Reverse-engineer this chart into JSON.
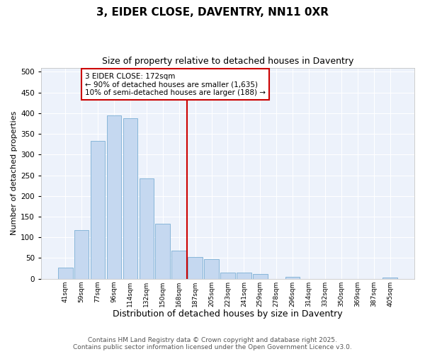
{
  "title": "3, EIDER CLOSE, DAVENTRY, NN11 0XR",
  "subtitle": "Size of property relative to detached houses in Daventry",
  "xlabel": "Distribution of detached houses by size in Daventry",
  "ylabel": "Number of detached properties",
  "bar_labels": [
    "41sqm",
    "59sqm",
    "77sqm",
    "96sqm",
    "114sqm",
    "132sqm",
    "150sqm",
    "168sqm",
    "187sqm",
    "205sqm",
    "223sqm",
    "241sqm",
    "259sqm",
    "278sqm",
    "296sqm",
    "314sqm",
    "332sqm",
    "350sqm",
    "369sqm",
    "387sqm",
    "405sqm"
  ],
  "bar_values": [
    27,
    117,
    333,
    395,
    387,
    243,
    133,
    68,
    52,
    48,
    15,
    15,
    11,
    0,
    5,
    0,
    0,
    0,
    0,
    0,
    3
  ],
  "bar_color": "#c5d8f0",
  "bar_edge_color": "#7bafd4",
  "vline_x": 7.5,
  "vline_color": "#cc0000",
  "annotation_title": "3 EIDER CLOSE: 172sqm",
  "annotation_line1": "← 90% of detached houses are smaller (1,635)",
  "annotation_line2": "10% of semi-detached houses are larger (188) →",
  "annotation_box_color": "#cc0000",
  "ylim": [
    0,
    510
  ],
  "yticks": [
    0,
    50,
    100,
    150,
    200,
    250,
    300,
    350,
    400,
    450,
    500
  ],
  "bg_color": "#ffffff",
  "plot_bg_color": "#edf2fb",
  "footer_line1": "Contains HM Land Registry data © Crown copyright and database right 2025.",
  "footer_line2": "Contains public sector information licensed under the Open Government Licence v3.0.",
  "title_fontsize": 11,
  "subtitle_fontsize": 9,
  "xlabel_fontsize": 9,
  "ylabel_fontsize": 8,
  "annotation_fontsize": 7.5,
  "footer_fontsize": 6.5,
  "grid_color": "#ffffff"
}
